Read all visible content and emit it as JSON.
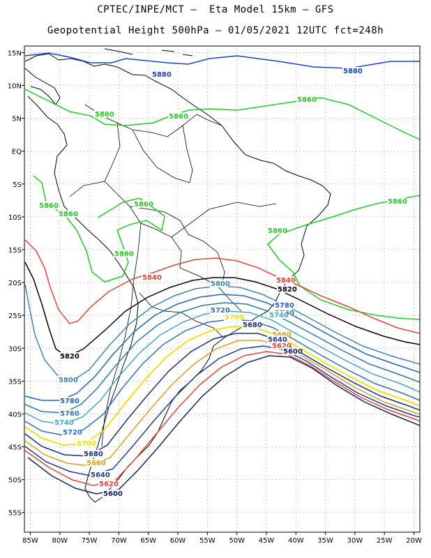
{
  "header": {
    "line1": "CPTEC/INPE/MCT –  Eta Model 15km – GFS",
    "line2": "Geopotential Height 500hPa – 01/05/2021 12UTC fct=248h"
  },
  "axes": {
    "lat_labels": [
      "15N",
      "10N",
      "5N",
      "EQ",
      "5S",
      "10S",
      "15S",
      "20S",
      "25S",
      "30S",
      "35S",
      "40S",
      "45S",
      "50S",
      "55S"
    ],
    "lon_labels": [
      "85W",
      "80W",
      "75W",
      "70W",
      "65W",
      "60W",
      "55W",
      "50W",
      "45W",
      "40W",
      "35W",
      "30W",
      "25W",
      "20W"
    ],
    "lat_range": [
      -58,
      16
    ],
    "lon_range": [
      -86,
      -19
    ],
    "grid": "dotted"
  },
  "colors": {
    "5880": "#1a3fd6",
    "5860": "#22cc22",
    "5840": "#e8433a",
    "5820": "#000000",
    "5800": "#3a86c2",
    "5780": "#1e5fd0",
    "5760": "#2a7aa8",
    "5740": "#42a9c8",
    "5720": "#3070c0",
    "5700": "#f0e000",
    "5680": "#1a2f7a",
    "5660": "#d8a020",
    "5640": "#1c3c9c",
    "5620": "#e8433a",
    "5600": "#142060"
  },
  "contour_labels": [
    {
      "text": "5880",
      "level": "5880"
    },
    {
      "text": "5880",
      "level": "5880"
    },
    {
      "text": "5860",
      "level": "5860"
    },
    {
      "text": "5860",
      "level": "5860"
    },
    {
      "text": "5860",
      "level": "5860"
    },
    {
      "text": "5860",
      "level": "5860"
    },
    {
      "text": "5860",
      "level": "5860"
    },
    {
      "text": "5860",
      "level": "5860"
    },
    {
      "text": "5860",
      "level": "5860"
    },
    {
      "text": "5860",
      "level": "5860"
    },
    {
      "text": "5860",
      "level": "5860"
    },
    {
      "text": "5840",
      "level": "5840"
    },
    {
      "text": "5840",
      "level": "5840"
    },
    {
      "text": "5820",
      "level": "5820"
    },
    {
      "text": "5820",
      "level": "5820"
    },
    {
      "text": "5800",
      "level": "5800"
    },
    {
      "text": "5800",
      "level": "5800"
    },
    {
      "text": "5780",
      "level": "5780"
    },
    {
      "text": "5780",
      "level": "5780"
    },
    {
      "text": "5760",
      "level": "5760"
    },
    {
      "text": "5760",
      "level": "5760"
    },
    {
      "text": "5740",
      "level": "5740"
    },
    {
      "text": "5740",
      "level": "5740"
    },
    {
      "text": "5720",
      "level": "5720"
    },
    {
      "text": "5720",
      "level": "5720"
    },
    {
      "text": "5700",
      "level": "5700"
    },
    {
      "text": "5700",
      "level": "5700"
    },
    {
      "text": "5680",
      "level": "5680"
    },
    {
      "text": "5680",
      "level": "5680"
    },
    {
      "text": "5660",
      "level": "5660"
    },
    {
      "text": "5660",
      "level": "5660"
    },
    {
      "text": "5640",
      "level": "5640"
    },
    {
      "text": "5640",
      "level": "5640"
    },
    {
      "text": "5620",
      "level": "5620"
    },
    {
      "text": "5620",
      "level": "5620"
    },
    {
      "text": "5600",
      "level": "5600"
    },
    {
      "text": "5600",
      "level": "5600"
    }
  ]
}
